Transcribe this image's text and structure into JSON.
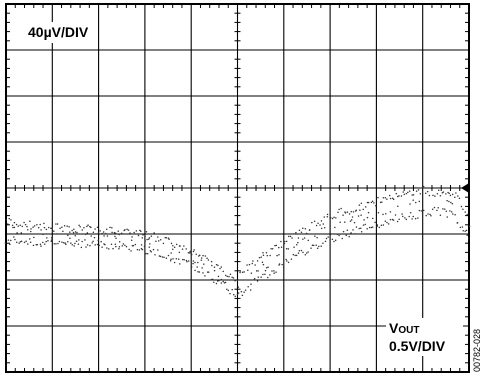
{
  "chart_data": {
    "type": "scatter",
    "title": "",
    "xlabel": "",
    "ylabel": "",
    "grid": true,
    "grid_divisions": {
      "x": 10,
      "y": 8
    },
    "xlim": [
      0,
      10
    ],
    "ylim": [
      -4,
      4
    ],
    "trigger_marker": "right",
    "scale_labels": {
      "top_left": "40µV/DIV",
      "bottom_right_prefix": "V",
      "bottom_right_subscript": "OUT",
      "bottom_right_scale": "0.5V/DIV"
    },
    "series": [
      {
        "x": [
          0.0,
          0.5,
          1.0,
          1.5,
          2.0,
          2.5,
          3.0,
          3.5,
          4.0,
          4.3,
          4.6,
          4.9,
          5.0,
          5.2,
          5.5,
          6.0,
          6.5,
          7.0,
          7.5,
          8.0,
          8.5,
          9.0,
          9.3,
          9.6,
          9.8,
          10.0
        ],
        "upper": [
          -0.7,
          -0.8,
          -0.85,
          -0.88,
          -0.9,
          -0.95,
          -1.0,
          -1.15,
          -1.35,
          -1.55,
          -1.75,
          -1.9,
          -1.95,
          -1.75,
          -1.5,
          -1.2,
          -0.9,
          -0.6,
          -0.45,
          -0.3,
          -0.15,
          -0.05,
          -0.1,
          -0.15,
          -0.2,
          -0.75
        ],
        "lower": [
          -1.15,
          -1.15,
          -1.2,
          -1.2,
          -1.22,
          -1.25,
          -1.35,
          -1.5,
          -1.65,
          -1.85,
          -2.05,
          -2.25,
          -2.35,
          -2.2,
          -1.95,
          -1.65,
          -1.35,
          -1.1,
          -0.95,
          -0.8,
          -0.65,
          -0.55,
          -0.5,
          -0.55,
          -0.8,
          -1.1
        ]
      }
    ],
    "figure_id": "00782-028"
  }
}
